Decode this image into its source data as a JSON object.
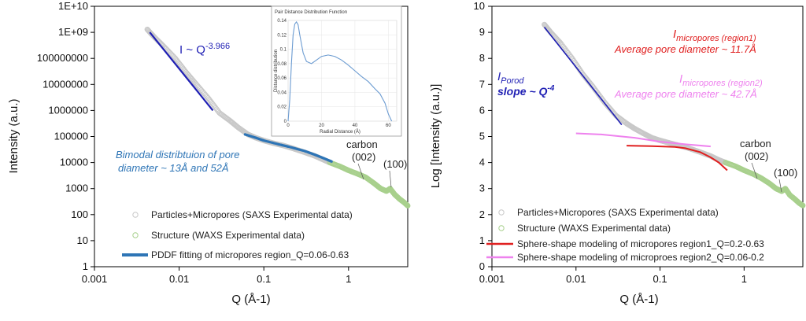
{
  "chart_data": [
    {
      "type": "scatter",
      "xlabel": "Q (Å-1)",
      "ylabel": "Intensity (a.u.)",
      "xscale": "log",
      "yscale": "log",
      "xlim": [
        0.001,
        5
      ],
      "ylim": [
        1,
        10000000000.0
      ],
      "x_ticks": [
        "0.001",
        "0.01",
        "0.1",
        "1"
      ],
      "y_ticks": [
        "1",
        "10",
        "100",
        "1000",
        "10000",
        "100000",
        "1000000",
        "10000000",
        "100000000",
        "1E+09",
        "1E+10"
      ],
      "grid": false,
      "legend_position": "bottom-center",
      "legend": [
        "Particles+Micropores (SAXS Experimental data)",
        "Structure (WAXS Experimental data)",
        "PDDF fitting of micropores region_Q=0.06-0.63"
      ],
      "series": [
        {
          "name": "Particles+Micropores (SAXS Experimental data)",
          "color": "#c8c8c8",
          "x": [
            0.0042,
            0.005,
            0.0065,
            0.009,
            0.012,
            0.016,
            0.022,
            0.03,
            0.04,
            0.05,
            0.065,
            0.08,
            0.1,
            0.13,
            0.17,
            0.22,
            0.3,
            0.4,
            0.5,
            0.6
          ],
          "y": [
            1300000000.0,
            700000000.0,
            300000000.0,
            100000000.0,
            30000000.0,
            10000000.0,
            3000000.0,
            800000.0,
            400000.0,
            220000.0,
            120000.0,
            90000.0,
            70000.0,
            55000.0,
            45000.0,
            35000.0,
            25000.0,
            18000.0,
            13000.0,
            10000.0
          ]
        },
        {
          "name": "Structure (WAXS Experimental data)",
          "color": "#a8d08d",
          "x": [
            0.6,
            0.8,
            1.0,
            1.3,
            1.6,
            2.0,
            2.4,
            2.8,
            3.1,
            3.5,
            4.0,
            4.5,
            5.0
          ],
          "y": [
            10000.0,
            7000.0,
            5000.0,
            3600.0,
            2700.0,
            1600.0,
            1000.0,
            800,
            1000,
            600,
            400,
            300,
            220
          ]
        },
        {
          "name": "PDDF fitting of micropores region_Q=0.06-0.63",
          "color": "#2e75b6",
          "x": [
            0.06,
            0.08,
            0.1,
            0.15,
            0.2,
            0.3,
            0.4,
            0.5,
            0.63
          ],
          "y": [
            120000.0,
            90000.0,
            70000.0,
            50000.0,
            40000.0,
            28000.0,
            20000.0,
            15000.0,
            11000.0
          ]
        },
        {
          "name": "I ~ Q^-3.966",
          "color": "#1f1fb4",
          "x": [
            0.0045,
            0.025
          ],
          "y": [
            1000000000.0,
            1000000.0
          ]
        }
      ],
      "annotations": {
        "power_law": "I ~ Q",
        "power_law_exp": "-3.966",
        "bimodal_line1": "Bimodal distribtuion of pore",
        "bimodal_line2": "diameter ~ 13Å and 52Å",
        "carbon": "carbon",
        "peak_002": "(002)",
        "peak_100": "(100)"
      },
      "inset": {
        "type": "line",
        "title": "Pair Distance Distribution Function",
        "xlabel": "Radial Distance (Å)",
        "ylabel": "Distance distribution",
        "xlim": [
          0,
          65
        ],
        "ylim": [
          0,
          0.14
        ],
        "x_ticks": [
          "0",
          "20",
          "40",
          "60"
        ],
        "y_ticks": [
          "0",
          "0.02",
          "0.04",
          "0.06",
          "0.08",
          "0.1",
          "0.12",
          "0.14"
        ],
        "color": "#6b9bd1",
        "x": [
          0,
          1,
          2,
          3,
          4,
          5,
          6,
          7,
          9,
          11,
          14,
          17,
          20,
          24,
          28,
          32,
          36,
          40,
          44,
          48,
          52,
          55,
          58,
          60,
          62
        ],
        "y": [
          0,
          0.03,
          0.08,
          0.12,
          0.135,
          0.138,
          0.134,
          0.12,
          0.095,
          0.083,
          0.08,
          0.085,
          0.09,
          0.092,
          0.09,
          0.085,
          0.078,
          0.07,
          0.062,
          0.055,
          0.045,
          0.038,
          0.025,
          0.01,
          0.0
        ]
      }
    },
    {
      "type": "line",
      "xlabel": "Q (Å-1)",
      "ylabel": "Log [Intensity (a.u.)]",
      "xscale": "log",
      "xlim": [
        0.001,
        5
      ],
      "ylim": [
        0,
        10
      ],
      "x_ticks": [
        "0.001",
        "0.01",
        "0.1",
        "1"
      ],
      "y_ticks": [
        "0",
        "1",
        "2",
        "3",
        "4",
        "5",
        "6",
        "7",
        "8",
        "9",
        "10"
      ],
      "grid": false,
      "legend_position": "bottom-center",
      "legend": [
        "Particles+Micropores (SAXS Experimental data)",
        "Structure (WAXS Experimental data)",
        "Sphere-shape modeling of micropores region1_Q=0.2-0.63",
        "Sphere-shape modeling of microproes region2_Q=0.06-0.2"
      ],
      "series": [
        {
          "name": "Particles+Micropores (SAXS Experimental data)",
          "color": "#c8c8c8",
          "x": [
            0.0042,
            0.005,
            0.0065,
            0.009,
            0.012,
            0.016,
            0.022,
            0.03,
            0.04,
            0.05,
            0.065,
            0.08,
            0.1,
            0.13,
            0.17,
            0.22,
            0.3,
            0.4,
            0.5,
            0.6
          ],
          "y": [
            9.3,
            9.0,
            8.6,
            8.0,
            7.4,
            6.9,
            6.3,
            5.8,
            5.5,
            5.3,
            5.1,
            4.95,
            4.85,
            4.75,
            4.65,
            4.55,
            4.4,
            4.25,
            4.1,
            4.0
          ]
        },
        {
          "name": "Structure (WAXS Experimental data)",
          "color": "#a8d08d",
          "x": [
            0.6,
            0.8,
            1.0,
            1.3,
            1.6,
            2.0,
            2.4,
            2.8,
            3.1,
            3.5,
            4.0,
            4.5,
            5.0
          ],
          "y": [
            4.0,
            3.85,
            3.7,
            3.55,
            3.4,
            3.2,
            3.0,
            2.9,
            3.0,
            2.75,
            2.6,
            2.45,
            2.35
          ]
        },
        {
          "name": "Sphere-shape modeling of micropores region1_Q=0.2-0.63",
          "color": "#e02020",
          "x": [
            0.04,
            0.08,
            0.15,
            0.2,
            0.3,
            0.4,
            0.5,
            0.63
          ],
          "y": [
            4.65,
            4.63,
            4.6,
            4.55,
            4.4,
            4.2,
            4.0,
            3.7
          ]
        },
        {
          "name": "Sphere-shape modeling of microproes region2_Q=0.06-0.2",
          "color": "#ee82ee",
          "x": [
            0.01,
            0.02,
            0.05,
            0.1,
            0.2,
            0.4
          ],
          "y": [
            5.12,
            5.08,
            4.95,
            4.8,
            4.7,
            4.62
          ]
        },
        {
          "name": "Porod slope",
          "color": "#1f1fb4",
          "x": [
            0.0042,
            0.035
          ],
          "y": [
            9.2,
            5.45
          ]
        }
      ],
      "annotations": {
        "i_micro1_main": "I",
        "i_micro1_sub": "micropores (region1)",
        "avg1": "Average pore diameter ~ 11.7Å",
        "i_micro2_main": "I",
        "i_micro2_sub": "micropores (region2)",
        "avg2": "Average pore diameter ~ 42.7Å",
        "porod_main": "I",
        "porod_sub": "Porod",
        "slope_text": "slope ~ Q",
        "slope_exp": "-4",
        "carbon": "carbon",
        "peak_002": "(002)",
        "peak_100": "(100)"
      }
    }
  ]
}
